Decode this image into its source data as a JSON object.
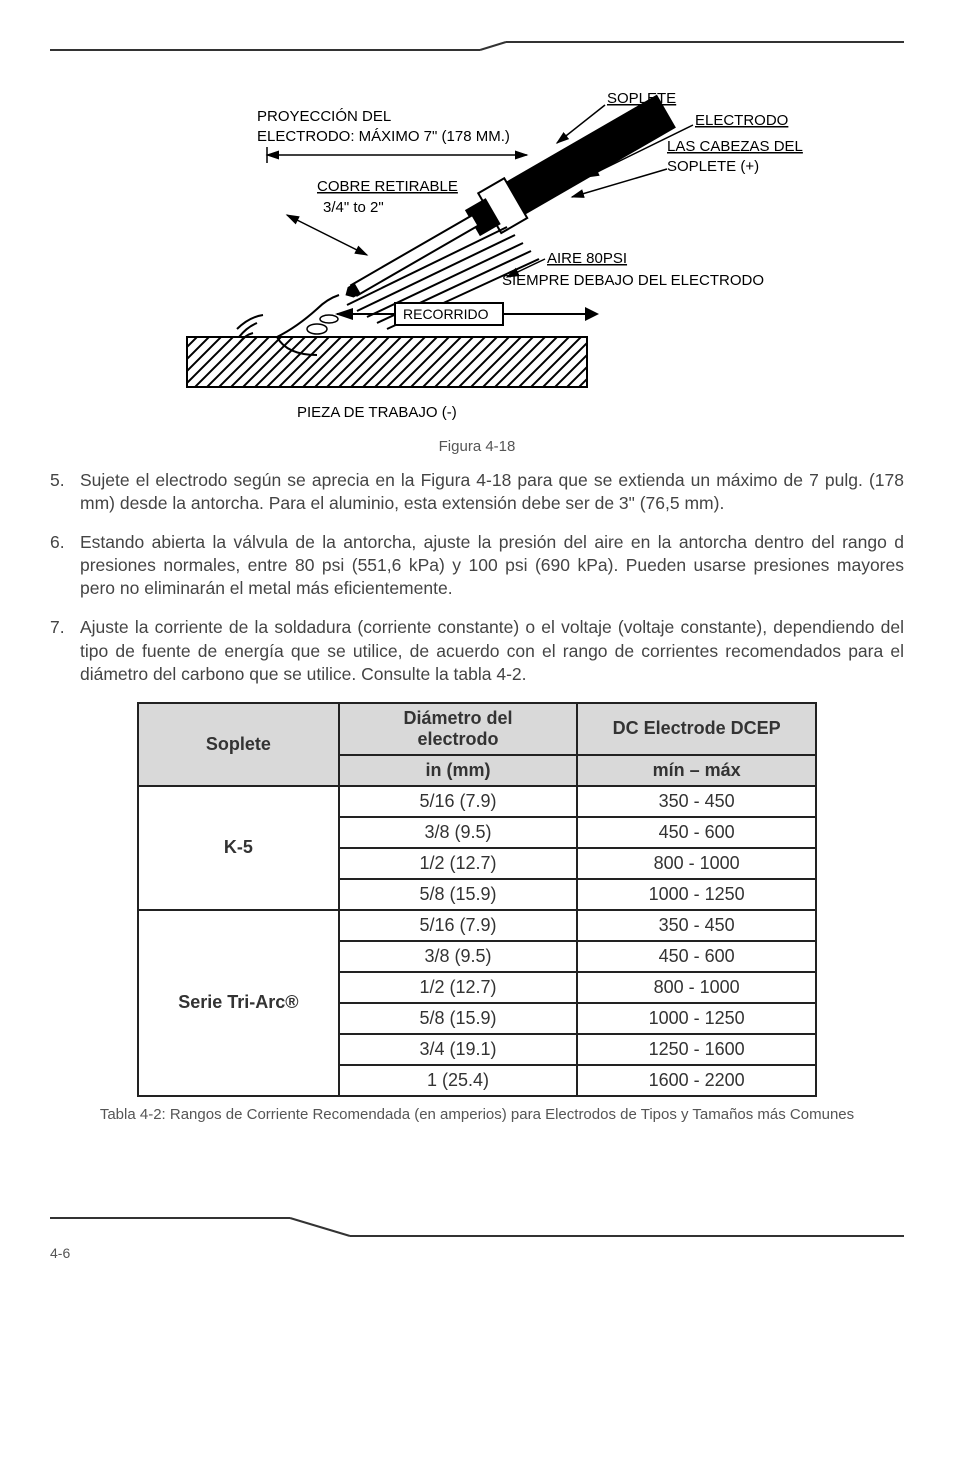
{
  "figure": {
    "labels": {
      "soplete": "SOPLETE",
      "electrodo": "ELECTRODO",
      "cabezas": "LAS CABEZAS DEL",
      "soplete_plus": "SOPLETE (+)",
      "proyeccion_l1": "PROYECCIÓN DEL",
      "proyeccion_l2": "ELECTRODO: MÁXIMO 7\" (178 MM.)",
      "cobre": "COBRE RETIRABLE",
      "fraction": "3/4\" to 2\"",
      "aire": "AIRE 80PSI",
      "siempre": "SIEMPRE DEBAJO DEL ELECTRODO",
      "recorrido": "RECORRIDO",
      "pieza": "PIEZA DE TRABAJO  (-)"
    },
    "caption": "Figura 4-18"
  },
  "paragraphs": [
    {
      "num": "5.",
      "text": "Sujete el electrodo según se aprecia en la Figura 4-18 para que se extienda un máximo de 7 pulg. (178 mm) desde la antorcha.  Para el aluminio, esta extensión debe ser de 3\" (76,5 mm)."
    },
    {
      "num": "6.",
      "text": "Estando abierta la válvula de la antorcha, ajuste la presión del aire en la antorcha dentro del rango d presiones normales, entre 80 psi (551,6 kPa) y 100 psi (690 kPa).  Pueden usarse presiones mayores pero no eliminarán el metal más eficientemente."
    },
    {
      "num": "7.",
      "text": "Ajuste la corriente de la soldadura (corriente constante) o el voltaje (voltaje constante), dependiendo del tipo de fuente de energía que se utilice, de acuerdo con el rango de corrientes recomendados para el diámetro del carbono que se utilice.  Consulte la tabla 4-2."
    }
  ],
  "table": {
    "headers": {
      "soplete": "Soplete",
      "diametro_l1": "Diámetro del",
      "diametro_l2": "electrodo",
      "dcep": "DC Electrode DCEP",
      "in_mm": "in (mm)",
      "min_max": "mín – máx"
    },
    "groups": [
      {
        "name": "K-5",
        "rows": [
          {
            "d": "5/16 (7.9)",
            "a": "350 - 450"
          },
          {
            "d": "3/8 (9.5)",
            "a": "450 - 600"
          },
          {
            "d": "1/2 (12.7)",
            "a": "800 - 1000"
          },
          {
            "d": "5/8 (15.9)",
            "a": "1000 - 1250"
          }
        ]
      },
      {
        "name": "Serie Tri-Arc®",
        "rows": [
          {
            "d": "5/16 (7.9)",
            "a": "350 - 450"
          },
          {
            "d": "3/8 (9.5)",
            "a": "450 - 600"
          },
          {
            "d": "1/2 (12.7)",
            "a": "800 - 1000"
          },
          {
            "d": "5/8 (15.9)",
            "a": "1000 - 1250"
          },
          {
            "d": "3/4 (19.1)",
            "a": "1250 - 1600"
          },
          {
            "d": "1 (25.4)",
            "a": "1600 - 2200"
          }
        ]
      }
    ],
    "caption": "Tabla 4-2: Rangos de Corriente Recomendada (en amperios) para Electrodos de Tipos y Tamaños más Comunes"
  },
  "page_number": "4-6"
}
